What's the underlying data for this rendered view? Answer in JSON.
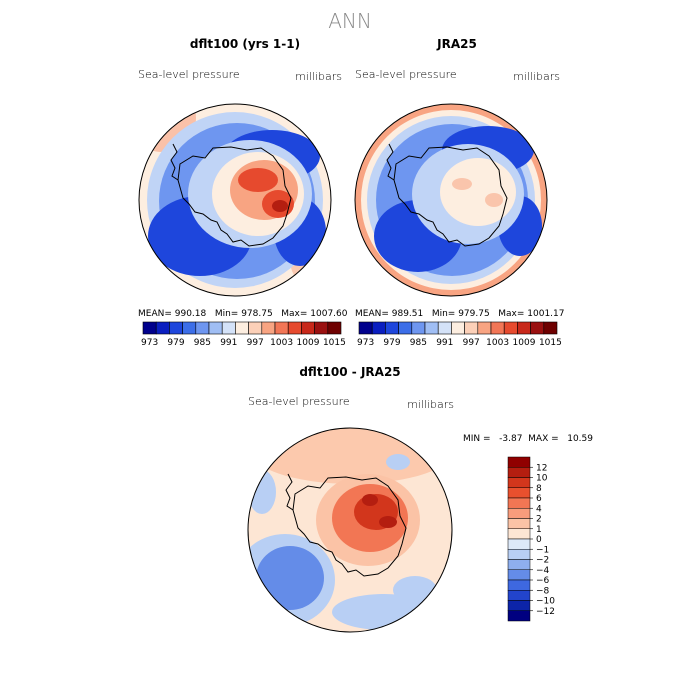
{
  "chart_data": {
    "type": "heatmap",
    "title": "ANN",
    "panels": [
      {
        "id": "model",
        "title": "dflt100 (yrs 1-1)",
        "left_label": "Sea-level pressure",
        "right_label": "millibars",
        "stats": {
          "mean": "990.18",
          "min": "978.75",
          "max": "1007.60"
        },
        "stats_text": "MEAN= 990.18   Min= 978.75   Max= 1007.60"
      },
      {
        "id": "obs",
        "title": "JRA25",
        "left_label": "Sea-level pressure",
        "right_label": "millibars",
        "stats": {
          "mean": "989.51",
          "min": "979.75",
          "max": "1001.17"
        },
        "stats_text": "MEAN= 989.51   Min= 979.75   Max= 1001.17"
      },
      {
        "id": "diff",
        "title": "dflt100 - JRA25",
        "left_label": "Sea-level pressure",
        "right_label": "millibars",
        "stats": {
          "min": "-3.87",
          "max": "10.59"
        },
        "stats_text": "MIN =   -3.87  MAX =   10.59"
      }
    ],
    "levels_colorbar": {
      "orientation": "horizontal",
      "tick_labels": [
        "973",
        "979",
        "985",
        "991",
        "997",
        "1003",
        "1009",
        "1015"
      ],
      "colors": [
        "#00008c",
        "#0a1ec0",
        "#1e46dc",
        "#3c6ee8",
        "#6e96f0",
        "#a0bef4",
        "#d4e2f8",
        "#fdeee0",
        "#fcd0b8",
        "#f8a482",
        "#f27656",
        "#e64a2e",
        "#c8281a",
        "#9a1010",
        "#6e0000"
      ]
    },
    "diff_colorbar": {
      "orientation": "vertical",
      "tick_labels": [
        "12",
        "10",
        "8",
        "6",
        "4",
        "2",
        "1",
        "0",
        "−1",
        "−2",
        "−4",
        "−6",
        "−8",
        "−10",
        "−12"
      ],
      "colors": [
        "#900000",
        "#b41e10",
        "#d2361c",
        "#e8502e",
        "#f27654",
        "#f89c7c",
        "#fbc3a6",
        "#fde6d4",
        "#dde9f8",
        "#b8cff4",
        "#8eafee",
        "#648ce8",
        "#3e68e0",
        "#2244cc",
        "#0c24a8",
        "#000080"
      ]
    },
    "colors": {
      "coastline": "#000000",
      "deep_blue": "#1e46dc",
      "mid_blue": "#6e96f0",
      "light_blue": "#c0d4f6",
      "cream": "#fdeee0",
      "salmon": "#f8a482",
      "red": "#e64a2e",
      "dark_red": "#b41e10"
    }
  }
}
